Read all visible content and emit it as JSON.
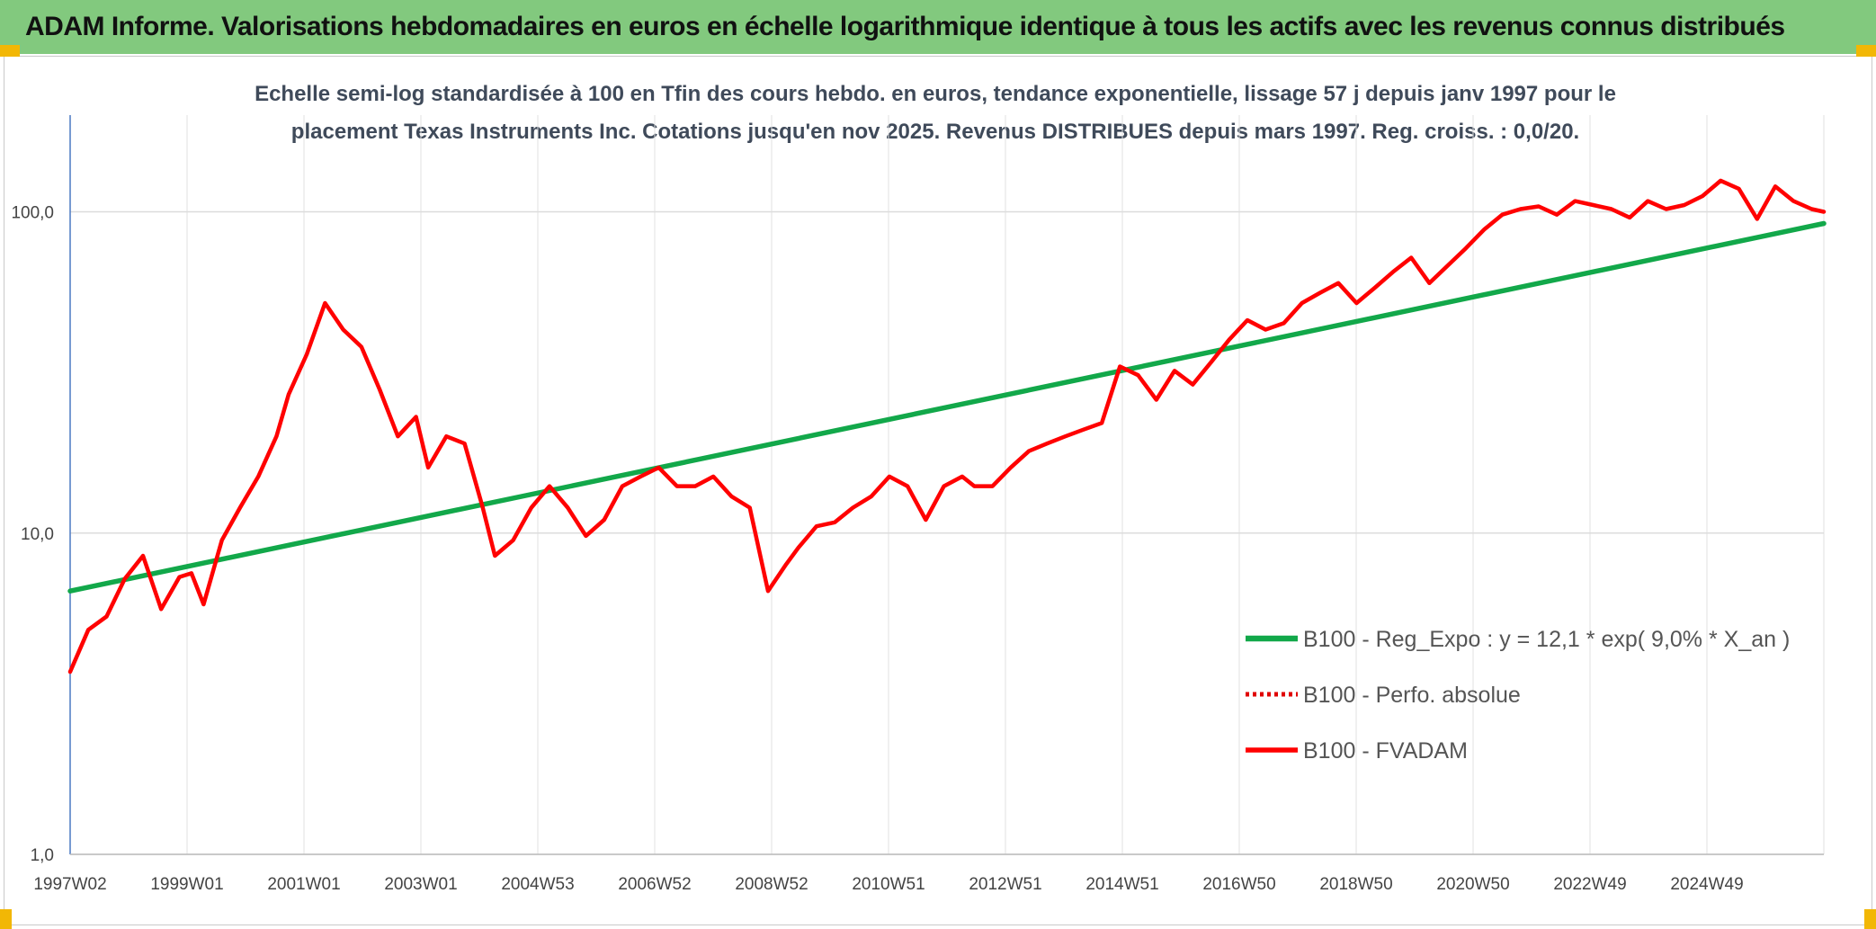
{
  "header": {
    "title": "ADAM Informe. Valorisations hebdomadaires en euros en échelle logarithmique identique à tous les actifs avec les revenus connus distribués"
  },
  "colors": {
    "header_bg": "#82c97e",
    "accent_corner": "#f2b705",
    "trend_line": "#12a84a",
    "fvadam_line": "#ff0000",
    "perfo_line": "#e00000"
  },
  "chart_data": {
    "type": "line",
    "title_lines": [
      "Echelle semi-log standardisée à 100 en Tfin des cours hebdo. en euros, tendance exponentielle, lissage 57 j depuis janv 1997 pour le",
      "placement Texas Instruments Inc. Cotations jusqu'en nov 2025. Revenus DISTRIBUES depuis mars 1997. Reg. croiss. : 0,0/20."
    ],
    "y_scale": "log",
    "ylim": [
      1,
      200
    ],
    "y_ticks": [
      "1,0",
      "10,0",
      "100,0"
    ],
    "x_ticks": [
      "1997W02",
      "1999W01",
      "2001W01",
      "2003W01",
      "2004W53",
      "2006W52",
      "2008W52",
      "2010W51",
      "2012W51",
      "2014W51",
      "2016W50",
      "2018W50",
      "2020W50",
      "2022W49",
      "2024W49"
    ],
    "xlim": [
      1997.0,
      2025.9
    ],
    "grid": "vertical and horizontal, light grey",
    "legend_position": "lower-right, inside plot",
    "series": [
      {
        "name": "B100 - Reg_Expo : y = 12,1 * exp( 9,0% *  X_an )",
        "style": "solid-green",
        "x": [
          1997.0,
          2025.9
        ],
        "y": [
          6.6,
          92
        ]
      },
      {
        "name": "B100 - Perfo. absolue",
        "style": "dotted-red",
        "x": [],
        "y": []
      },
      {
        "name": "B100 - FVADAM",
        "style": "solid-red",
        "x": [
          1997.0,
          1997.3,
          1997.6,
          1997.9,
          1998.2,
          1998.5,
          1998.8,
          1999.0,
          1999.2,
          1999.5,
          1999.8,
          2000.1,
          2000.4,
          2000.6,
          2000.9,
          2001.2,
          2001.5,
          2001.8,
          2002.1,
          2002.4,
          2002.7,
          2002.9,
          2003.2,
          2003.5,
          2003.8,
          2004.0,
          2004.3,
          2004.6,
          2004.9,
          2005.2,
          2005.5,
          2005.8,
          2006.1,
          2006.4,
          2006.7,
          2007.0,
          2007.3,
          2007.6,
          2007.9,
          2008.2,
          2008.5,
          2008.8,
          2009.0,
          2009.3,
          2009.6,
          2009.9,
          2010.2,
          2010.5,
          2010.8,
          2011.1,
          2011.4,
          2011.7,
          2011.9,
          2012.2,
          2012.5,
          2012.8,
          2013.1,
          2013.4,
          2013.7,
          2014.0,
          2014.3,
          2014.6,
          2014.9,
          2015.2,
          2015.5,
          2015.8,
          2016.1,
          2016.4,
          2016.7,
          2017.0,
          2017.3,
          2017.6,
          2017.9,
          2018.2,
          2018.5,
          2018.8,
          2019.1,
          2019.4,
          2019.7,
          2020.0,
          2020.3,
          2020.6,
          2020.9,
          2021.2,
          2021.5,
          2021.8,
          2022.1,
          2022.4,
          2022.7,
          2023.0,
          2023.3,
          2023.6,
          2023.9,
          2024.2,
          2024.5,
          2024.8,
          2025.1,
          2025.4,
          2025.7,
          2025.9
        ],
        "y": [
          3.7,
          5.0,
          5.5,
          7.2,
          8.5,
          5.8,
          7.3,
          7.5,
          6.0,
          9.5,
          12,
          15,
          20,
          27,
          36,
          52,
          43,
          38,
          28,
          20,
          23,
          16,
          20,
          19,
          12,
          8.5,
          9.5,
          12,
          14,
          12,
          9.8,
          11,
          14,
          15,
          16,
          14,
          14,
          15,
          13,
          12,
          6.6,
          8.0,
          9.0,
          10.5,
          10.8,
          12,
          13,
          15,
          14,
          11,
          14,
          15,
          14,
          14,
          16,
          18,
          19,
          20,
          21,
          22,
          33,
          31,
          26,
          32,
          29,
          34,
          40,
          46,
          43,
          45,
          52,
          56,
          60,
          52,
          58,
          65,
          72,
          60,
          68,
          77,
          88,
          98,
          102,
          104,
          98,
          108,
          105,
          102,
          96,
          108,
          102,
          105,
          112,
          125,
          118,
          95,
          120,
          108,
          102,
          100
        ]
      }
    ]
  }
}
